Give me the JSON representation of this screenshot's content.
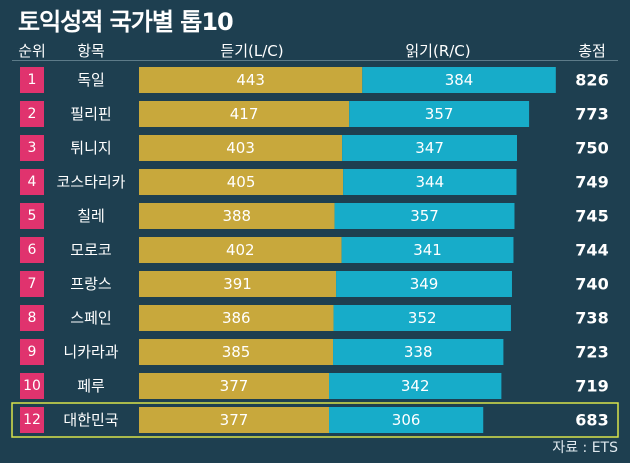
{
  "colors": {
    "background": "#1e3f50",
    "rank_badge": "#e0336e",
    "listening_bar": "#c8a83c",
    "reading_bar": "#17acc9",
    "highlight_border": "#d8e34b"
  },
  "chart_data": {
    "type": "bar",
    "stacked": true,
    "orientation": "horizontal",
    "title": "토익성적 국가별 톱10",
    "columns": {
      "rank": "순위",
      "item": "항목",
      "listening": "듣기(L/C)",
      "reading": "읽기(R/C)",
      "total": "총점"
    },
    "ranks": [
      "1",
      "2",
      "3",
      "4",
      "5",
      "6",
      "7",
      "8",
      "9",
      "10",
      "12"
    ],
    "categories": [
      "독일",
      "필리핀",
      "튀니지",
      "코스타리카",
      "칠레",
      "모로코",
      "프랑스",
      "스페인",
      "니카라과",
      "페루",
      "대한민국"
    ],
    "series": [
      {
        "name": "듣기(L/C)",
        "values": [
          443,
          417,
          403,
          405,
          388,
          402,
          391,
          386,
          385,
          377,
          377
        ]
      },
      {
        "name": "읽기(R/C)",
        "values": [
          384,
          357,
          347,
          344,
          357,
          341,
          349,
          352,
          338,
          342,
          306
        ]
      }
    ],
    "totals": [
      826,
      773,
      750,
      749,
      745,
      744,
      740,
      738,
      723,
      719,
      683
    ],
    "highlighted_row": 10,
    "source": "자료 : ETS"
  }
}
